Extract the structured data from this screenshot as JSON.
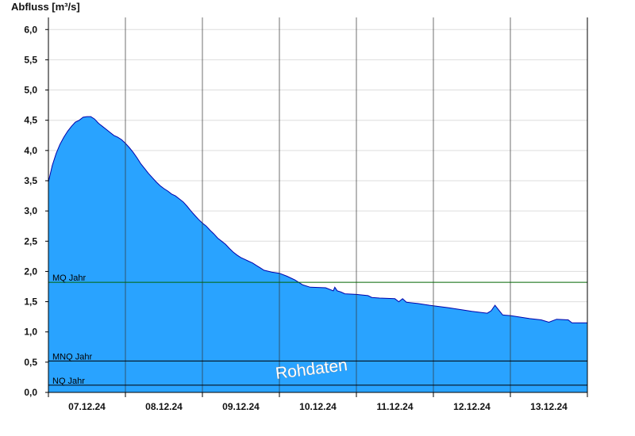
{
  "chart_data": {
    "type": "area",
    "title": "",
    "ylabel": "Abfluss [m³/s]",
    "xlabel": "",
    "ylim": [
      0,
      6.2
    ],
    "y_ticks": [
      "0,0",
      "0,5",
      "1,0",
      "1,5",
      "2,0",
      "2,5",
      "3,0",
      "3,5",
      "4,0",
      "4,5",
      "5,0",
      "5,5",
      "6,0"
    ],
    "y_tick_values": [
      0,
      0.5,
      1,
      1.5,
      2,
      2.5,
      3,
      3.5,
      4,
      4.5,
      5,
      5.5,
      6
    ],
    "xlim_days": [
      0,
      7
    ],
    "x_ticks": [
      "07.12.24",
      "08.12.24",
      "09.12.24",
      "10.12.24",
      "11.12.24",
      "12.12.24",
      "13.12.24"
    ],
    "grid": true,
    "series": [
      {
        "values": [
          [
            0.0,
            3.48
          ],
          [
            0.05,
            3.75
          ],
          [
            0.1,
            3.95
          ],
          [
            0.15,
            4.1
          ],
          [
            0.2,
            4.22
          ],
          [
            0.25,
            4.32
          ],
          [
            0.3,
            4.4
          ],
          [
            0.35,
            4.47
          ],
          [
            0.4,
            4.5
          ],
          [
            0.45,
            4.55
          ],
          [
            0.5,
            4.56
          ],
          [
            0.55,
            4.56
          ],
          [
            0.6,
            4.52
          ],
          [
            0.65,
            4.45
          ],
          [
            0.7,
            4.4
          ],
          [
            0.75,
            4.35
          ],
          [
            0.8,
            4.3
          ],
          [
            0.85,
            4.25
          ],
          [
            0.9,
            4.22
          ],
          [
            0.95,
            4.18
          ],
          [
            1.0,
            4.12
          ],
          [
            1.05,
            4.05
          ],
          [
            1.1,
            3.97
          ],
          [
            1.15,
            3.88
          ],
          [
            1.2,
            3.78
          ],
          [
            1.25,
            3.7
          ],
          [
            1.3,
            3.62
          ],
          [
            1.35,
            3.55
          ],
          [
            1.4,
            3.48
          ],
          [
            1.45,
            3.42
          ],
          [
            1.5,
            3.37
          ],
          [
            1.55,
            3.33
          ],
          [
            1.6,
            3.28
          ],
          [
            1.65,
            3.25
          ],
          [
            1.7,
            3.2
          ],
          [
            1.75,
            3.15
          ],
          [
            1.8,
            3.08
          ],
          [
            1.85,
            3.0
          ],
          [
            1.9,
            2.93
          ],
          [
            1.95,
            2.86
          ],
          [
            2.0,
            2.8
          ],
          [
            2.05,
            2.75
          ],
          [
            2.1,
            2.68
          ],
          [
            2.15,
            2.62
          ],
          [
            2.2,
            2.55
          ],
          [
            2.25,
            2.5
          ],
          [
            2.3,
            2.45
          ],
          [
            2.35,
            2.38
          ],
          [
            2.4,
            2.32
          ],
          [
            2.45,
            2.27
          ],
          [
            2.5,
            2.23
          ],
          [
            2.55,
            2.2
          ],
          [
            2.6,
            2.17
          ],
          [
            2.65,
            2.14
          ],
          [
            2.7,
            2.1
          ],
          [
            2.75,
            2.06
          ],
          [
            2.8,
            2.02
          ],
          [
            2.9,
            1.99
          ],
          [
            3.0,
            1.97
          ],
          [
            3.1,
            1.92
          ],
          [
            3.2,
            1.86
          ],
          [
            3.3,
            1.78
          ],
          [
            3.4,
            1.74
          ],
          [
            3.6,
            1.73
          ],
          [
            3.7,
            1.68
          ],
          [
            3.72,
            1.74
          ],
          [
            3.75,
            1.68
          ],
          [
            3.8,
            1.66
          ],
          [
            3.85,
            1.63
          ],
          [
            4.0,
            1.62
          ],
          [
            4.15,
            1.6
          ],
          [
            4.2,
            1.57
          ],
          [
            4.3,
            1.56
          ],
          [
            4.5,
            1.55
          ],
          [
            4.55,
            1.5
          ],
          [
            4.6,
            1.55
          ],
          [
            4.65,
            1.49
          ],
          [
            4.8,
            1.47
          ],
          [
            4.95,
            1.44
          ],
          [
            5.2,
            1.4
          ],
          [
            5.5,
            1.34
          ],
          [
            5.7,
            1.31
          ],
          [
            5.75,
            1.35
          ],
          [
            5.8,
            1.44
          ],
          [
            5.85,
            1.36
          ],
          [
            5.9,
            1.28
          ],
          [
            6.0,
            1.27
          ],
          [
            6.25,
            1.22
          ],
          [
            6.4,
            1.2
          ],
          [
            6.5,
            1.16
          ],
          [
            6.6,
            1.21
          ],
          [
            6.75,
            1.2
          ],
          [
            6.8,
            1.15
          ],
          [
            7.0,
            1.15
          ]
        ],
        "color": "#29a3ff",
        "line_color": "#0000aa"
      }
    ],
    "reference_lines": [
      {
        "label": "MQ Jahr",
        "value": 1.82,
        "color": "#006600"
      },
      {
        "label": "MNQ Jahr",
        "value": 0.52,
        "color": "#000000"
      },
      {
        "label": "NQ Jahr",
        "value": 0.12,
        "color": "#000000"
      }
    ],
    "watermark": "Rohdaten",
    "colors": {
      "fill": "#29a3ff",
      "outline": "#0000aa",
      "grid": "#dddddd",
      "axis": "#000000"
    }
  }
}
